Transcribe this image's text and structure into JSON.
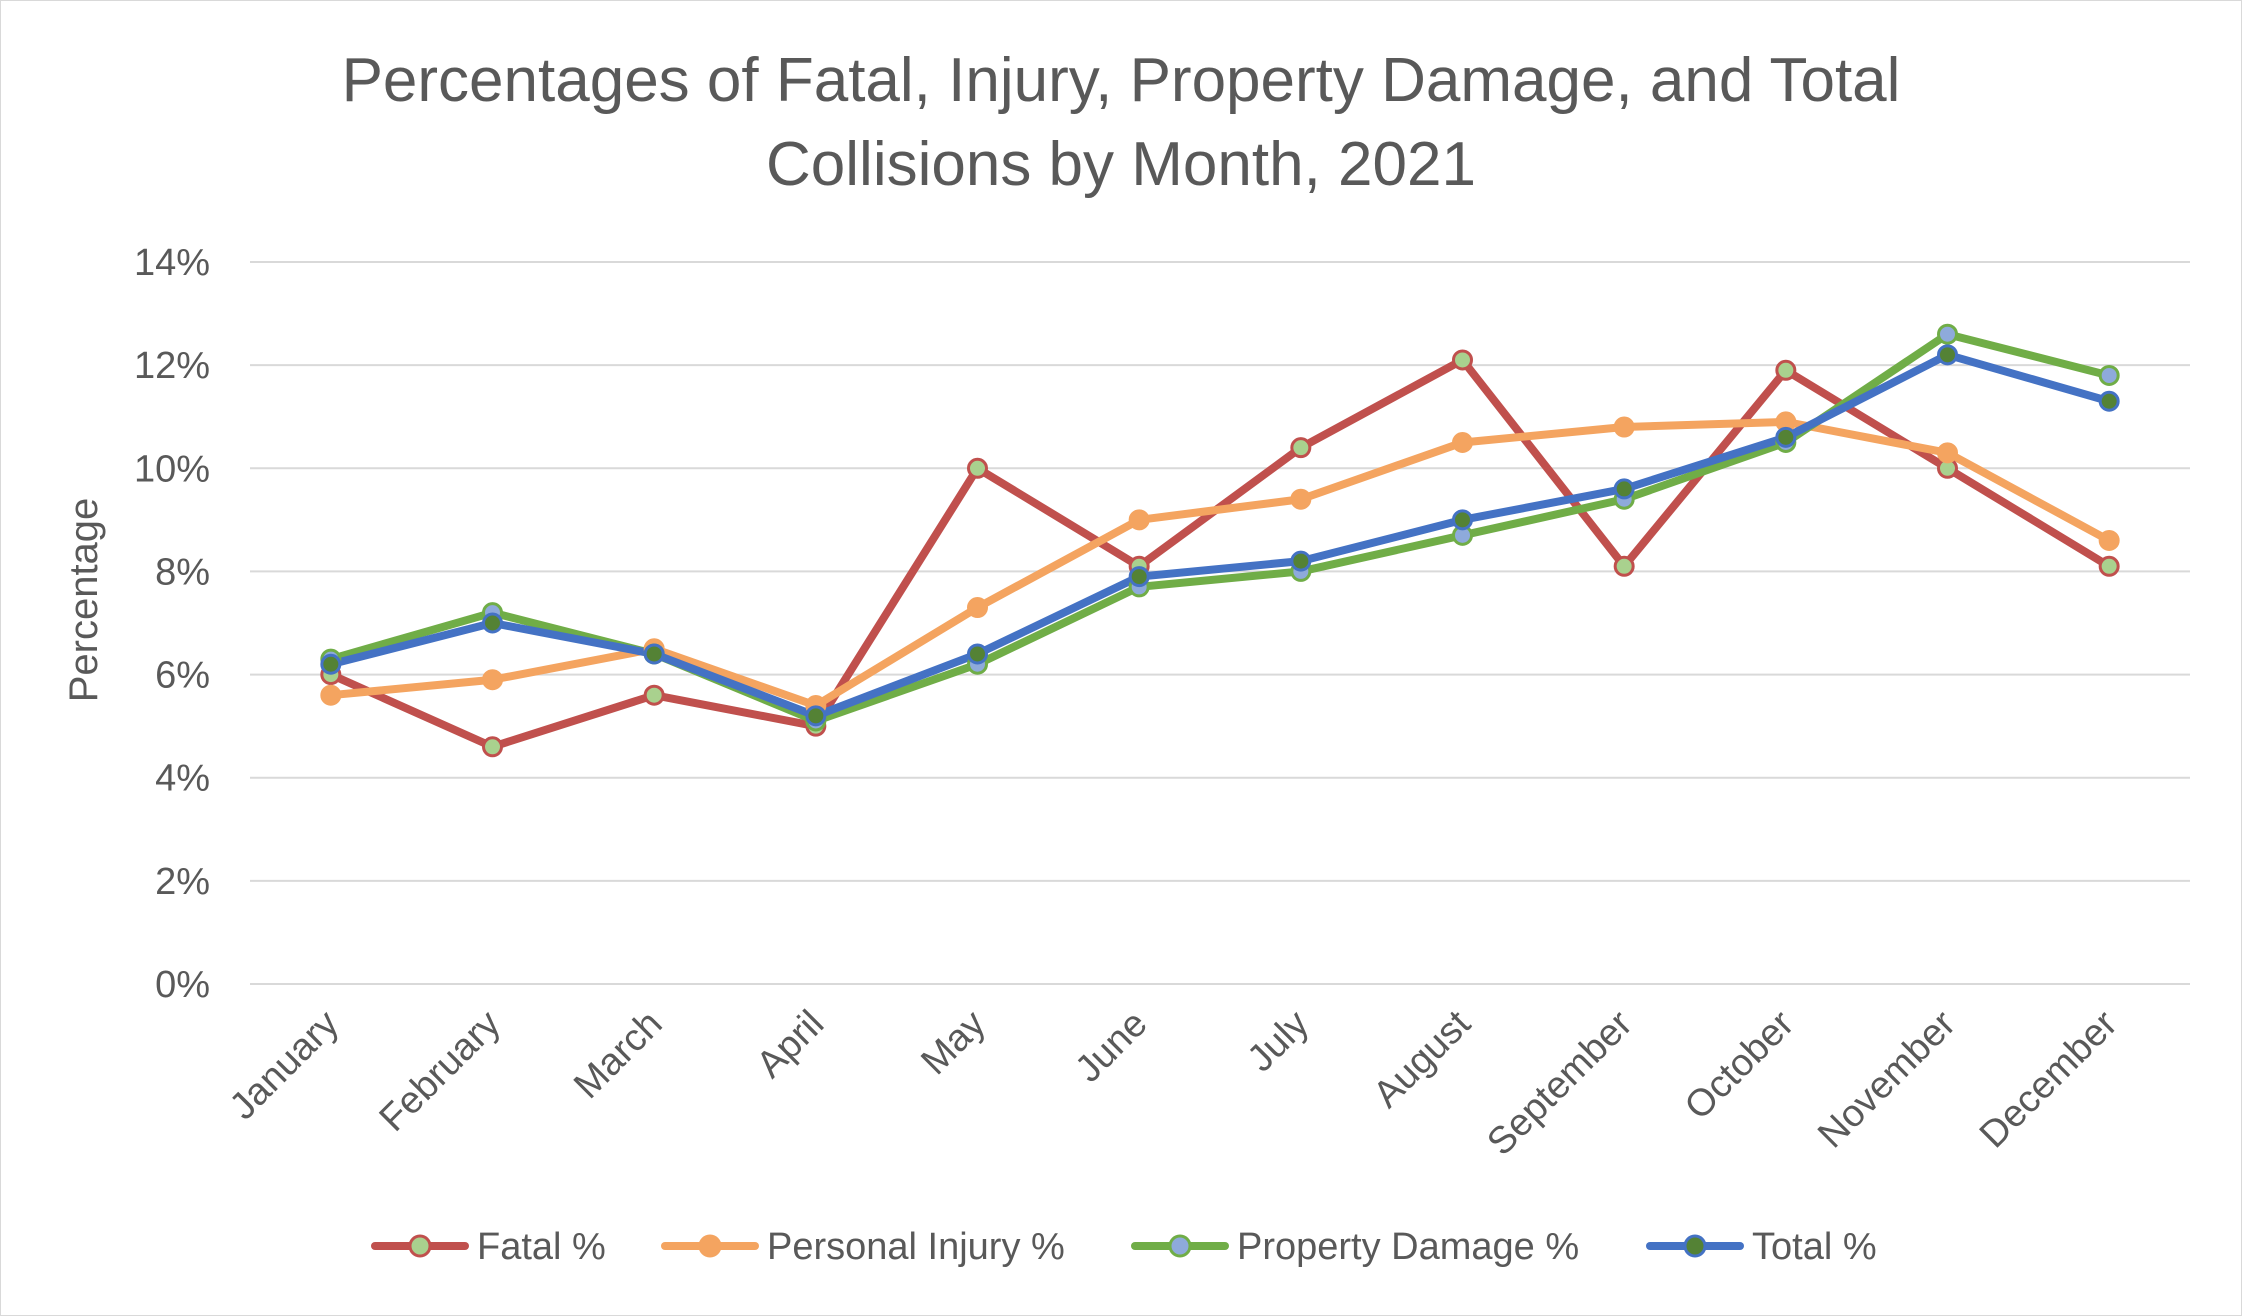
{
  "chart_data": {
    "type": "line",
    "title_lines": [
      "Percentages of Fatal, Injury, Property Damage, and Total",
      "Collisions by Month, 2021"
    ],
    "xlabel": "",
    "ylabel": "Percentage",
    "ylim": [
      0,
      14
    ],
    "y_ticks": [
      0,
      2,
      4,
      6,
      8,
      10,
      12,
      14
    ],
    "y_tick_labels": [
      "0%",
      "2%",
      "4%",
      "6%",
      "8%",
      "10%",
      "12%",
      "14%"
    ],
    "categories": [
      "January",
      "February",
      "March",
      "April",
      "May",
      "June",
      "July",
      "August",
      "September",
      "October",
      "November",
      "December"
    ],
    "grid": true,
    "legend_position": "bottom",
    "series": [
      {
        "name": "Fatal %",
        "color": "#c0504d",
        "marker_fill": "#a9d18e",
        "values": [
          6.0,
          4.6,
          5.6,
          5.0,
          10.0,
          8.1,
          10.4,
          12.1,
          8.1,
          11.9,
          10.0,
          8.1
        ]
      },
      {
        "name": "Personal Injury %",
        "color": "#f4a460",
        "marker_fill": "#f4a460",
        "values": [
          5.6,
          5.9,
          6.5,
          5.4,
          7.3,
          9.0,
          9.4,
          10.5,
          10.8,
          10.9,
          10.3,
          8.6
        ]
      },
      {
        "name": "Property Damage %",
        "color": "#70ad47",
        "marker_fill": "#8eaadb",
        "values": [
          6.3,
          7.2,
          6.4,
          5.1,
          6.2,
          7.7,
          8.0,
          8.7,
          9.4,
          10.5,
          12.6,
          11.8
        ]
      },
      {
        "name": "Total %",
        "color": "#4472c4",
        "marker_fill": "#548235",
        "values": [
          6.2,
          7.0,
          6.4,
          5.2,
          6.4,
          7.9,
          8.2,
          9.0,
          9.6,
          10.6,
          12.2,
          11.3
        ]
      }
    ]
  }
}
